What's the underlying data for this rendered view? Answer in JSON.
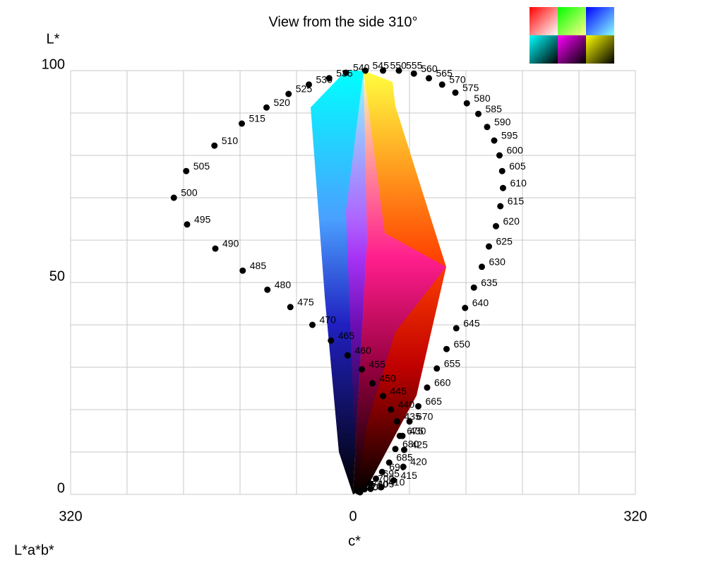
{
  "chart_data": {
    "type": "scatter",
    "title": "View from the side 310°",
    "x_label": "c*",
    "y_label": "L*",
    "corner_label": "L*a*b*",
    "xlim": [
      -320,
      320
    ],
    "ylim": [
      0,
      100
    ],
    "xticks": [
      {
        "value": -320,
        "label": "320"
      },
      0,
      320
    ],
    "yticks": [
      0,
      50,
      100
    ],
    "xgrid": [
      -256,
      -192,
      -128,
      -64,
      64,
      128,
      192,
      256
    ],
    "ygrid": [
      10,
      20,
      30,
      40,
      60,
      70,
      80,
      90
    ],
    "grid": true,
    "color": "#000000",
    "labels": [
      400,
      405,
      410,
      415,
      420,
      425,
      430,
      435,
      440,
      445,
      450,
      455,
      460,
      465,
      470,
      475,
      480,
      485,
      490,
      495,
      500,
      505,
      510,
      515,
      520,
      525,
      530,
      535,
      540,
      545,
      550,
      555,
      560,
      565,
      570,
      575,
      580,
      585,
      590,
      595,
      600,
      605,
      610,
      615,
      620,
      625,
      630,
      635,
      640,
      645,
      650,
      655,
      660,
      665,
      670,
      675,
      680,
      685,
      690,
      695,
      700,
      710,
      720
    ],
    "x": [
      8,
      20,
      32,
      46,
      57,
      58,
      56,
      50,
      43,
      34,
      22,
      10,
      -6,
      -25,
      -46,
      -71,
      -97,
      -125,
      -156,
      -188,
      -203,
      -189,
      -157,
      -126,
      -98,
      -73,
      -50,
      -27,
      -8,
      14,
      34,
      52,
      69,
      86,
      101,
      116,
      129,
      142,
      152,
      160,
      166,
      169,
      170,
      167,
      162,
      154,
      146,
      137,
      127,
      117,
      106,
      95,
      84,
      74,
      64,
      53,
      48,
      41,
      33,
      26,
      20,
      13,
      6
    ],
    "values": [
      0.5,
      1.3,
      1.7,
      3.3,
      6.5,
      10.5,
      13.8,
      17.2,
      20,
      23.2,
      26.2,
      29.5,
      32.8,
      36.3,
      40,
      44.2,
      48.3,
      52.8,
      58,
      63.7,
      70,
      76.3,
      82.3,
      87.5,
      91.3,
      94.5,
      96.7,
      98.2,
      99.5,
      100,
      100,
      100,
      99.3,
      98.2,
      96.7,
      94.8,
      92.3,
      89.8,
      86.7,
      83.5,
      80,
      76.3,
      72.3,
      68,
      63.3,
      58.5,
      53.7,
      48.8,
      44,
      39.2,
      34.3,
      29.7,
      25.2,
      20.8,
      17.2,
      13.8,
      10.7,
      7.5,
      5.3,
      3.7,
      2.5,
      1.2,
      0.7
    ]
  }
}
